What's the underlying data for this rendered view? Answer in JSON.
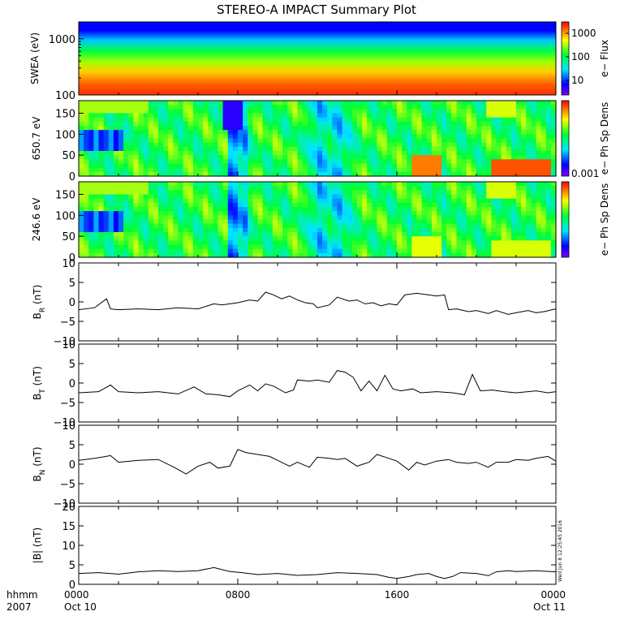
{
  "title": "STEREO-A IMPACT Summary Plot",
  "stamp": "Wed Jun  8 12:25:45 2016",
  "chart_data": [
    {
      "type": "heatmap",
      "ylabel": "SWEA (eV)",
      "yscale": "log",
      "ylim": [
        100,
        2000
      ],
      "yticks": [
        "1000",
        "100"
      ],
      "colorbar": {
        "label": "e− Flux",
        "scale": "log",
        "ticks": [
          "1000",
          "100",
          "10"
        ]
      },
      "description_values": {
        "low_energy_flux": "high",
        "high_energy_flux": "low"
      }
    },
    {
      "type": "heatmap",
      "ylabel": "650.7 eV",
      "ylim": [
        0,
        180
      ],
      "yticks": [
        "150",
        "100",
        "50",
        "0"
      ],
      "colorbar": {
        "label": "e− Ph Sp Dens",
        "ticks": [
          "0.001"
        ]
      }
    },
    {
      "type": "heatmap",
      "ylabel": "246.6 eV",
      "ylim": [
        0,
        180
      ],
      "yticks": [
        "150",
        "100",
        "50",
        "0"
      ],
      "colorbar": {
        "label": "e− Ph Sp Dens",
        "ticks": []
      }
    },
    {
      "type": "line",
      "ylabel": "B_R (nT)",
      "ylim": [
        -10,
        10
      ],
      "yticks": [
        "10",
        "5",
        "0",
        "−5",
        "−10"
      ],
      "x_hours": [
        0,
        0.8,
        1.4,
        1.6,
        2.0,
        3,
        4,
        5,
        6,
        6.8,
        7.2,
        8,
        8.6,
        9,
        9.4,
        9.8,
        10.2,
        10.6,
        11,
        11.4,
        11.8,
        12,
        12.6,
        13,
        13.6,
        14,
        14.4,
        14.8,
        15.2,
        15.6,
        16,
        16.4,
        17,
        17.6,
        18,
        18.4,
        18.6,
        19,
        19.6,
        20,
        20.6,
        21,
        21.6,
        22,
        22.6,
        23,
        23.4,
        24
      ],
      "values": [
        -2,
        -1.5,
        0.8,
        -1.8,
        -2,
        -1.8,
        -2,
        -1.5,
        -1.8,
        -0.5,
        -0.8,
        -0.2,
        0.5,
        0.2,
        2.5,
        1.8,
        0.8,
        1.5,
        0.5,
        -0.2,
        -0.5,
        -1.5,
        -0.8,
        1.2,
        0.2,
        0.5,
        -0.5,
        -0.2,
        -1,
        -0.5,
        -0.8,
        1.8,
        2.2,
        1.8,
        1.5,
        1.8,
        -2,
        -1.8,
        -2.5,
        -2.2,
        -3,
        -2.2,
        -3.2,
        -2.8,
        -2.2,
        -2.8,
        -2.5,
        -1.8
      ]
    },
    {
      "type": "line",
      "ylabel": "B_T (nT)",
      "ylim": [
        -10,
        10
      ],
      "yticks": [
        "10",
        "5",
        "0",
        "−5",
        "−10"
      ],
      "x_hours": [
        0,
        1,
        1.6,
        2,
        3,
        4,
        5,
        5.8,
        6.4,
        7,
        7.6,
        8,
        8.6,
        9,
        9.4,
        9.8,
        10.4,
        10.8,
        11,
        11.6,
        12,
        12.6,
        13,
        13.4,
        13.8,
        14.2,
        14.6,
        15,
        15.4,
        15.8,
        16.2,
        16.8,
        17.2,
        18,
        18.8,
        19.4,
        19.8,
        20.2,
        20.8,
        21.4,
        22,
        22.6,
        23,
        23.6,
        24
      ],
      "values": [
        -2.5,
        -2.2,
        -0.5,
        -2.2,
        -2.5,
        -2.2,
        -2.8,
        -1,
        -2.8,
        -3,
        -3.5,
        -2,
        -0.5,
        -2,
        -0.2,
        -0.8,
        -2.5,
        -1.8,
        0.8,
        0.5,
        0.8,
        0.2,
        3.2,
        2.8,
        1.5,
        -2,
        0.5,
        -2,
        2,
        -1.5,
        -2,
        -1.5,
        -2.5,
        -2.2,
        -2.5,
        -3,
        2.2,
        -2,
        -1.8,
        -2.2,
        -2.5,
        -2.2,
        -2,
        -2.5,
        -2.2
      ]
    },
    {
      "type": "line",
      "ylabel": "B_N (nT)",
      "ylim": [
        -10,
        10
      ],
      "yticks": [
        "10",
        "5",
        "0",
        "−5",
        "−10"
      ],
      "x_hours": [
        0,
        0.8,
        1.6,
        2,
        3,
        4,
        4.8,
        5.4,
        6,
        6.6,
        7,
        7.6,
        8,
        8.4,
        9,
        9.6,
        10,
        10.6,
        11,
        11.6,
        12,
        12.6,
        13,
        13.4,
        14,
        14.6,
        15,
        15.6,
        16,
        16.6,
        17,
        17.4,
        18,
        18.6,
        19,
        19.6,
        20,
        20.6,
        21,
        21.6,
        22,
        22.6,
        23,
        23.6,
        24
      ],
      "values": [
        1,
        1.5,
        2.2,
        0.5,
        1,
        1.2,
        -0.8,
        -2.5,
        -0.5,
        0.5,
        -1,
        -0.5,
        3.8,
        3,
        2.5,
        2,
        1,
        -0.5,
        0.5,
        -0.8,
        1.8,
        1.5,
        1.2,
        1.5,
        -0.5,
        0.5,
        2.5,
        1.5,
        0.8,
        -1.5,
        0.5,
        -0.2,
        0.8,
        1.2,
        0.5,
        0.2,
        0.5,
        -0.8,
        0.5,
        0.5,
        1.2,
        1,
        1.5,
        2,
        0.8
      ]
    },
    {
      "type": "line",
      "ylabel": "|B| (nT)",
      "ylim": [
        0,
        20
      ],
      "yticks": [
        "20",
        "15",
        "10",
        "5",
        "0"
      ],
      "x_hours": [
        0,
        1,
        2,
        3,
        4,
        5,
        6,
        6.8,
        7.6,
        8.2,
        9,
        10,
        11,
        12,
        13,
        14,
        15,
        15.6,
        16,
        16.6,
        17,
        17.6,
        18,
        18.4,
        18.8,
        19.2,
        20,
        20.6,
        21,
        21.6,
        22,
        23,
        24
      ],
      "values": [
        2.8,
        3,
        2.6,
        3.2,
        3.5,
        3.3,
        3.5,
        4.3,
        3.3,
        3,
        2.5,
        2.8,
        2.3,
        2.5,
        3,
        2.8,
        2.5,
        1.8,
        1.5,
        2,
        2.5,
        2.8,
        2,
        1.5,
        2,
        3,
        2.8,
        2.2,
        3.2,
        3.5,
        3.3,
        3.5,
        3.2
      ]
    }
  ],
  "xaxis": {
    "hhmm_label": "hhmm",
    "year_label": "2007",
    "ticks": [
      {
        "hour": 0,
        "label": "0000",
        "date": "Oct 10"
      },
      {
        "hour": 8,
        "label": "0800",
        "date": ""
      },
      {
        "hour": 16,
        "label": "1600",
        "date": ""
      },
      {
        "hour": 24,
        "label": "0000",
        "date": "Oct 11"
      }
    ],
    "range_hours": [
      0,
      24
    ]
  }
}
